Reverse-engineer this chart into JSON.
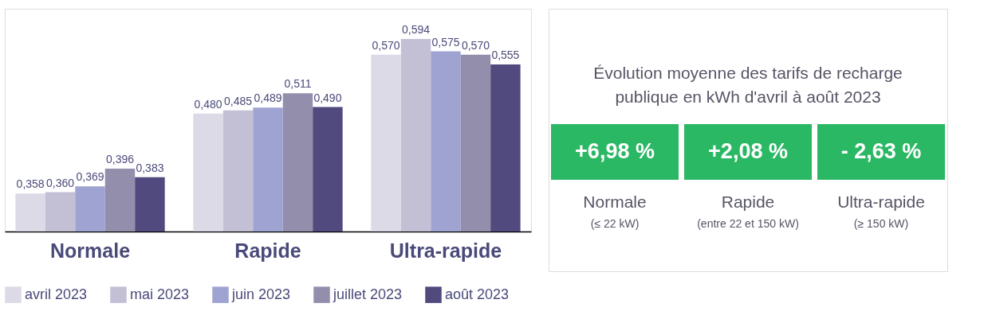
{
  "chart_data": [
    {
      "type": "bar",
      "categories": [
        "Normale",
        "Rapide",
        "Ultra-rapide"
      ],
      "ylim": [
        0.3,
        0.64
      ],
      "legend": "bottom",
      "series": [
        {
          "name": "avril 2023",
          "color": "#dcdae6",
          "values": [
            0.358,
            0.48,
            0.57
          ],
          "value_labels": [
            "0,358",
            "0,480",
            "0,570"
          ]
        },
        {
          "name": "mai 2023",
          "color": "#c3c0d6",
          "values": [
            0.36,
            0.485,
            0.594
          ],
          "value_labels": [
            "0,360",
            "0,485",
            "0,594"
          ]
        },
        {
          "name": "juin 2023",
          "color": "#9fa3d2",
          "values": [
            0.369,
            0.489,
            0.575
          ],
          "value_labels": [
            "0,369",
            "0,489",
            "0,575"
          ]
        },
        {
          "name": "juillet 2023",
          "color": "#948ead",
          "values": [
            0.396,
            0.511,
            0.57
          ],
          "value_labels": [
            "0,396",
            "0,511",
            "0,570"
          ]
        },
        {
          "name": "août 2023",
          "color": "#514a7e",
          "values": [
            0.383,
            0.49,
            0.555
          ],
          "value_labels": [
            "0,383",
            "0,490",
            "0,555"
          ]
        }
      ]
    },
    {
      "type": "other",
      "title": "Évolution moyenne des tarifs de recharge publique en kWh d'avril à août 2023",
      "annotations": [
        "+6,98 %",
        "+2,08 %",
        "- 2,63 %",
        "Normale",
        "Rapide",
        "Ultra-rapide",
        "(≤ 22 kW)",
        "(entre 22 et 150 kW)",
        "(≥ 150 kW)"
      ]
    }
  ]
}
